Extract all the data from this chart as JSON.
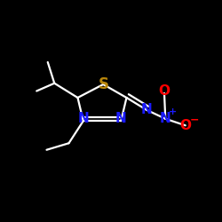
{
  "background": "#000000",
  "atom_colors": {
    "N": "#1a1aff",
    "S": "#b8860b",
    "O": "#ff0000",
    "C": "#ffffff",
    "plus": "#1a1aff",
    "minus": "#ff0000"
  },
  "lw": 1.6,
  "fs": 11
}
